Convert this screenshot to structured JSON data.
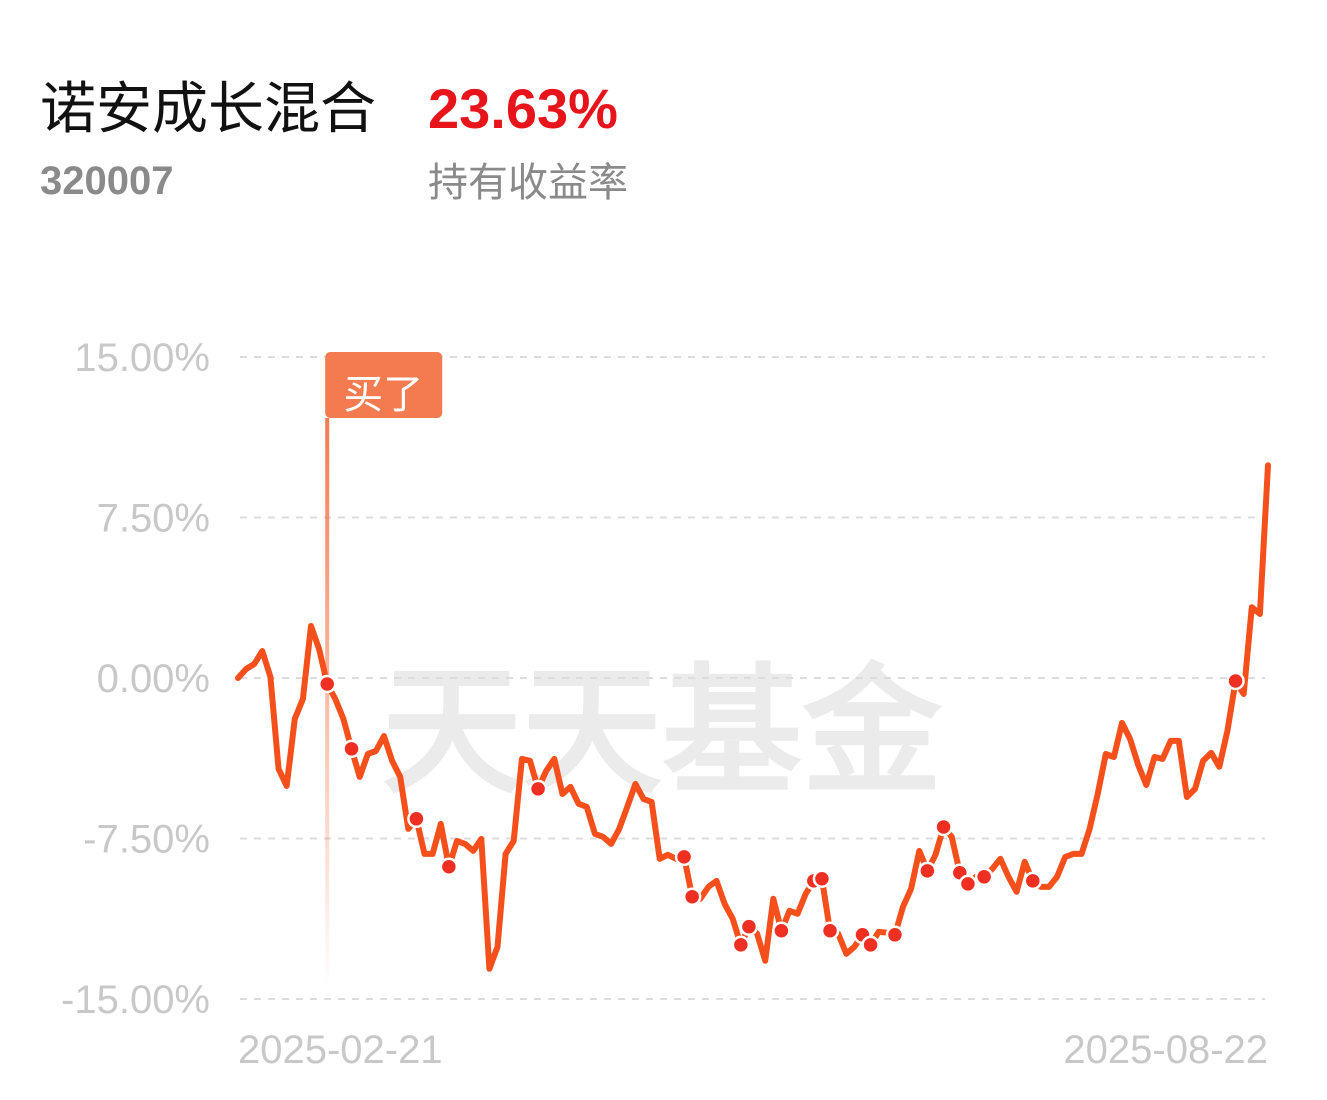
{
  "header": {
    "name": "诺安成长混合",
    "return_value": "23.63%",
    "code": "320007",
    "return_label": "持有收益率"
  },
  "chart_data": {
    "type": "line",
    "watermark": "天天基金",
    "annotation": "买了",
    "annotation_index": 11,
    "color": "#f5501c",
    "marker_color": "#ee2f22",
    "grid": true,
    "ylim": [
      -15,
      15
    ],
    "yticks": [
      {
        "value": 15,
        "label": "15.00%"
      },
      {
        "value": 7.5,
        "label": "7.50%"
      },
      {
        "value": 0,
        "label": "0.00%"
      },
      {
        "value": -7.5,
        "label": "-7.50%"
      },
      {
        "value": -15,
        "label": "-15.00%"
      }
    ],
    "categories": [
      "2025-02-21",
      null,
      null,
      null,
      null,
      null,
      null,
      null,
      null,
      null,
      null,
      null,
      null,
      null,
      null,
      null,
      null,
      null,
      null,
      null,
      null,
      null,
      null,
      null,
      null,
      null,
      null,
      null,
      null,
      null,
      null,
      null,
      null,
      null,
      null,
      null,
      null,
      null,
      null,
      null,
      null,
      null,
      null,
      null,
      null,
      null,
      null,
      null,
      null,
      null,
      null,
      null,
      null,
      null,
      null,
      null,
      null,
      null,
      null,
      null,
      null,
      null,
      null,
      null,
      null,
      null,
      null,
      null,
      null,
      null,
      null,
      null,
      null,
      null,
      null,
      null,
      null,
      null,
      null,
      null,
      null,
      null,
      null,
      null,
      null,
      null,
      null,
      null,
      null,
      null,
      null,
      null,
      null,
      null,
      null,
      null,
      null,
      null,
      null,
      null,
      null,
      null,
      null,
      null,
      null,
      null,
      null,
      null,
      null,
      null,
      null,
      null,
      null,
      null,
      null,
      null,
      null,
      null,
      null,
      null,
      null,
      null,
      null,
      null,
      null,
      null,
      null,
      "2025-08-22"
    ],
    "values": [
      0,
      0.42,
      0.65,
      1.26,
      0.05,
      -4.25,
      -5.04,
      -1.91,
      -0.98,
      2.43,
      1.35,
      -0.28,
      -0.98,
      -1.91,
      -3.31,
      -4.62,
      -3.55,
      -3.41,
      -2.71,
      -3.87,
      -4.62,
      -7.05,
      -6.58,
      -8.22,
      -8.22,
      -6.82,
      -8.82,
      -7.61,
      -7.75,
      -8.08,
      -7.52,
      -13.59,
      -12.56,
      -8.22,
      -7.61,
      -3.78,
      -3.87,
      -5.18,
      -4.34,
      -3.78,
      -5.42,
      -5.09,
      -5.88,
      -6.02,
      -7.28,
      -7.42,
      -7.75,
      -7.05,
      -6.02,
      -4.95,
      -5.65,
      -5.79,
      -8.45,
      -8.26,
      -8.45,
      -8.36,
      -10.22,
      -10.32,
      -9.76,
      -9.48,
      -10.55,
      -11.25,
      -12.47,
      -11.62,
      -11.95,
      -13.21,
      -10.32,
      -11.81,
      -10.88,
      -11.02,
      -10.08,
      -9.48,
      -9.38,
      -11.81,
      -11.95,
      -12.89,
      -12.56,
      -12.0,
      -12.47,
      -11.86,
      -11.9,
      -12.0,
      -10.69,
      -9.85,
      -8.08,
      -9.01,
      -8.26,
      -6.96,
      -7.42,
      -9.1,
      -9.62,
      -9.29,
      -9.29,
      -8.92,
      -8.45,
      -9.29,
      -9.99,
      -8.59,
      -9.48,
      -9.76,
      -9.76,
      -9.29,
      -8.36,
      -8.22,
      -8.22,
      -7.05,
      -5.42,
      -3.55,
      -3.69,
      -2.1,
      -2.85,
      -4.06,
      -5.0,
      -3.69,
      -3.78,
      -2.94,
      -2.94,
      -5.56,
      -5.18,
      -3.87,
      -3.5,
      -4.15,
      -2.47,
      -0.14,
      -0.75,
      3.31,
      2.99,
      9.94
    ],
    "markers": [
      11,
      14,
      22,
      26,
      37,
      55,
      56,
      62,
      63,
      67,
      71,
      72,
      73,
      77,
      78,
      81,
      85,
      87,
      89,
      90,
      92,
      98,
      123
    ]
  }
}
